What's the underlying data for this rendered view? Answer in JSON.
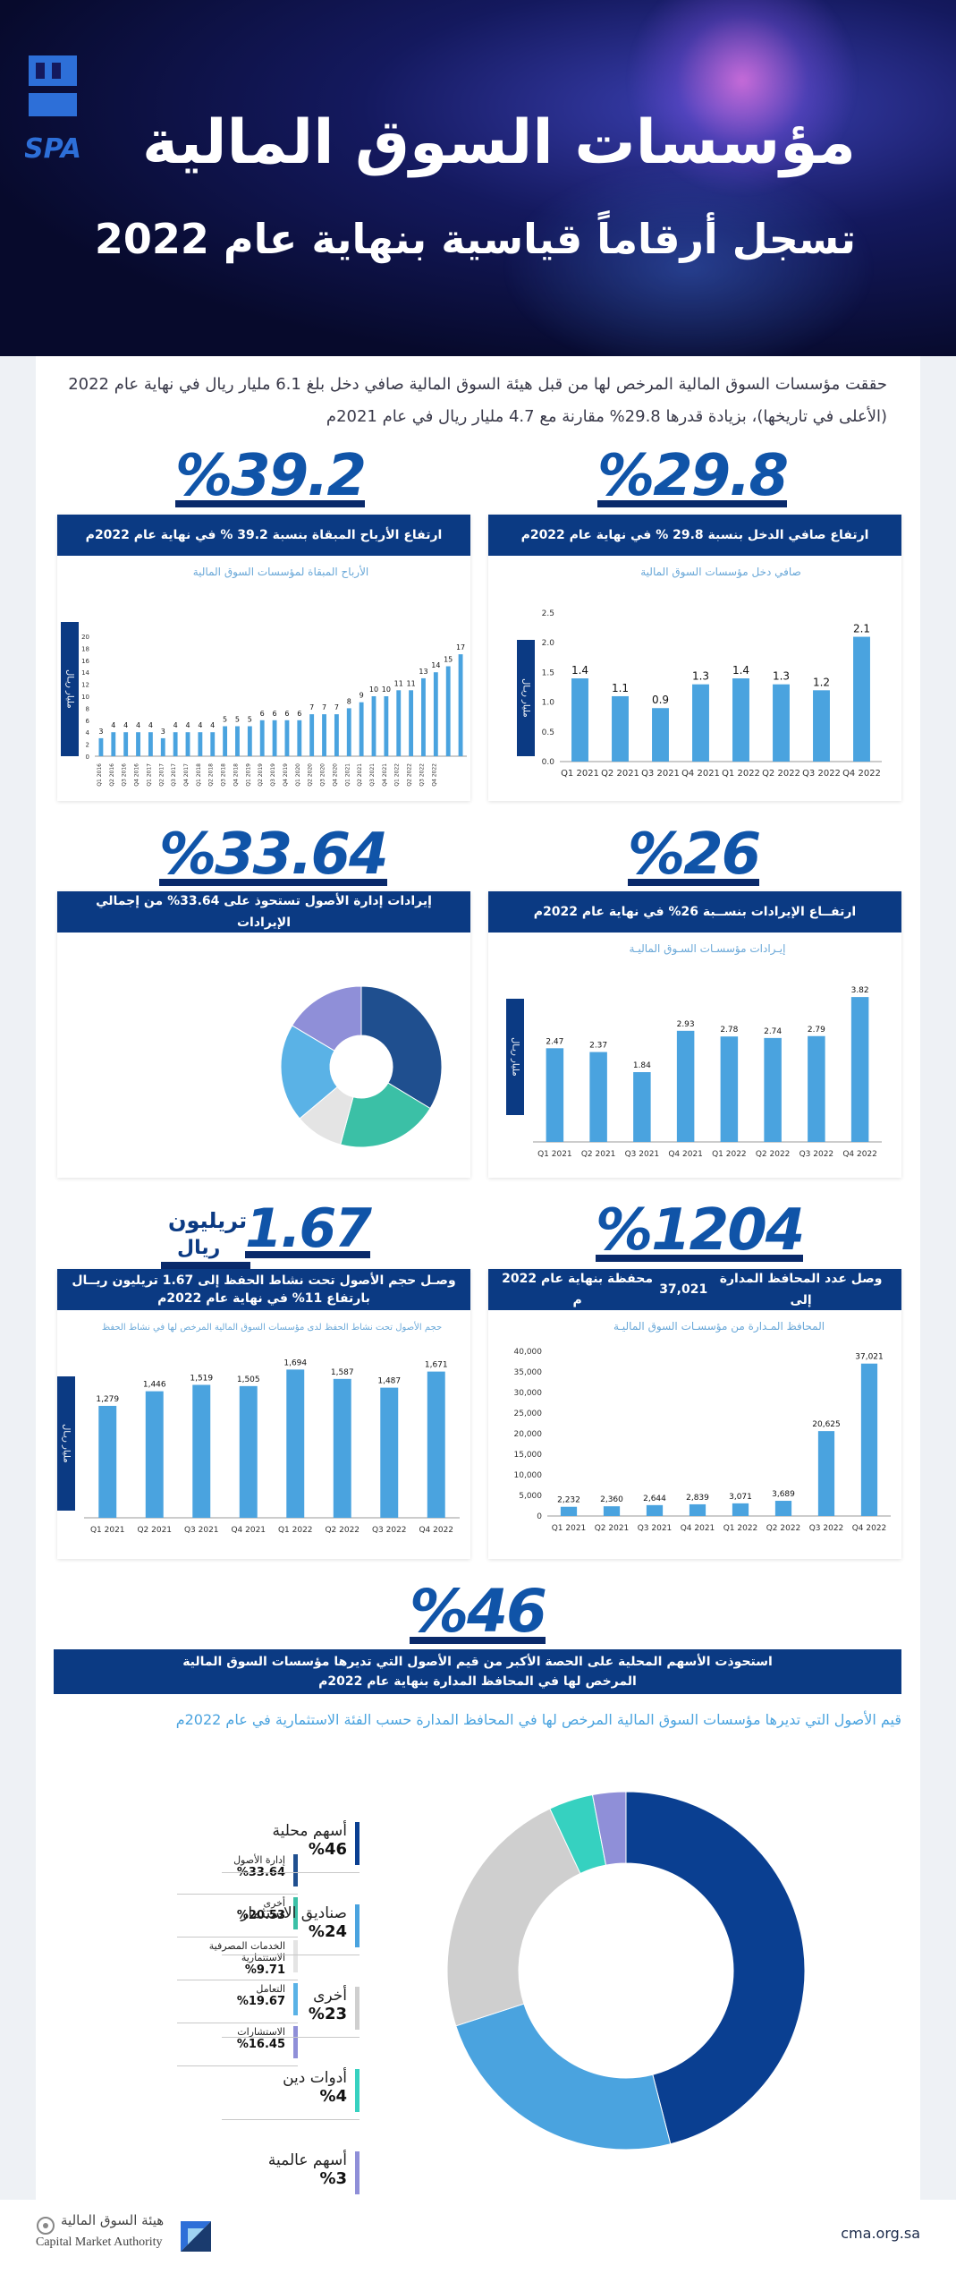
{
  "header": {
    "title": "مؤسسات السوق المالية",
    "subtitle": "تسجل أرقاماً قياسية بنهاية عام 2022",
    "logo_text": "SPA"
  },
  "intro": {
    "text": "حققت مؤسسات السوق المالية المرخص لها من قبل هيئة السوق المالية صافي دخل بلغ 6.1 مليار ريال في نهاية عام 2022 (الأعلى في تاريخها)، بزيادة قدرها 29.8% مقارنة مع 4.7 مليار ريال في عام 2021م"
  },
  "stats": {
    "net_income_pct": "%29.8",
    "profits_pct": "%39.2",
    "revenue_pct": "%26",
    "asset_mgmt_pct": "%33.64",
    "portfolios_pct": "%1204",
    "aum_value": "1.67",
    "aum_unit_1": "تريليون",
    "aum_unit_2": "ريال",
    "local_equity_pct": "%46"
  },
  "banners": {
    "net_income": "ارتفاع صافي الدخل بنسبة 29.8 % في نهاية عام 2022م",
    "profits": "ارتفاع الأرباح المبقاة بنسبة 39.2 % في نهاية عام 2022م",
    "revenue": "ارتفــاع الإيرادات بنســبة 26% في نهاية عام 2022م",
    "asset_mgmt": "إيرادات إدارة الأصول تستحوذ على 33.64% من إجمالي الإيرادات",
    "portfolios_a": "وصل عدد المحافظ المدارة إلى ",
    "portfolios_b": "37,021",
    "portfolios_c": " محفظة بنهاية عام 2022 م",
    "aum_1": "وصـل حجم الأصول تحت نشاط الحفظ إلى 1.67 تريليون ريــال",
    "aum_2": "بارتفاع 11% في نهاية عام 2022م",
    "local_1": "استحوذت الأسهم المحلية على الحصة الأكبر من قيم الأصول التي تديرها مؤسسات السوق المالية",
    "local_2": "المرخص لها في المحافظ المدارة بنهاية عام 2022م"
  },
  "y_axis_label": "مليار ريـال",
  "chart_data": [
    {
      "id": "net_income",
      "type": "bar",
      "title": "صافي دخل مؤسسات السوق المالية",
      "ylabel": "مليار ريـال",
      "categories": [
        "Q1 2021",
        "Q2 2021",
        "Q3 2021",
        "Q4 2021",
        "Q1 2022",
        "Q2 2022",
        "Q3 2022",
        "Q4 2022"
      ],
      "values": [
        1.4,
        1.1,
        0.9,
        1.3,
        1.4,
        1.3,
        1.2,
        2.1
      ],
      "value_labels": [
        "1.4",
        "1.1",
        "0.9",
        "1.3",
        "1.4",
        "1.3",
        "1.2",
        "2.1"
      ],
      "ylim": [
        0,
        2.5
      ],
      "yticks": [
        "0.0",
        "0.5",
        "1.0",
        "1.5",
        "2.0",
        "2.5"
      ],
      "color": "#4aa3df"
    },
    {
      "id": "retained_profits",
      "type": "bar",
      "title": "الأرباح المبقاة لمؤسسات السوق المالية",
      "ylabel": "مليار ريـال",
      "categories": [
        "Q1 2016",
        "Q2 2016",
        "Q3 2016",
        "Q4 2016",
        "Q1 2017",
        "Q2 2017",
        "Q3 2017",
        "Q4 2017",
        "Q1 2018",
        "Q2 2018",
        "Q3 2018",
        "Q4 2018",
        "Q1 2019",
        "Q2 2019",
        "Q3 2019",
        "Q4 2019",
        "Q1 2020",
        "Q2 2020",
        "Q3 2020",
        "Q4 2020",
        "Q1 2021",
        "Q2 2021",
        "Q3 2021",
        "Q4 2021",
        "Q1 2022",
        "Q2 2022",
        "Q3 2022",
        "Q4 2022"
      ],
      "values": [
        3,
        4,
        4,
        4,
        4,
        3,
        4,
        4,
        4,
        4,
        5,
        5,
        5,
        6,
        6,
        6,
        6,
        7,
        7,
        7,
        8,
        9,
        10,
        10,
        11,
        11,
        13,
        14
      ],
      "value_labels": [
        "3",
        "4",
        "4",
        "4",
        "4",
        "3",
        "4",
        "4",
        "4",
        "4",
        "5",
        "5",
        "5",
        "6",
        "6",
        "6",
        "6",
        "7",
        "7",
        "7",
        "8",
        "9",
        "10",
        "10",
        "11",
        "11",
        "13",
        "14"
      ],
      "extra_values": [
        15,
        17
      ],
      "extra_labels": [
        "15",
        "17"
      ],
      "ylim": [
        0,
        20
      ],
      "yticks": [
        "0",
        "2",
        "4",
        "6",
        "8",
        "10",
        "12",
        "14",
        "16",
        "18",
        "20"
      ],
      "color": "#4aa3df"
    },
    {
      "id": "revenue",
      "type": "bar",
      "title": "إيـرادات مؤسسـات السـوق الماليـة",
      "ylabel": "مليار ريـال",
      "categories": [
        "Q1 2021",
        "Q2 2021",
        "Q3 2021",
        "Q4 2021",
        "Q1 2022",
        "Q2 2022",
        "Q3 2022",
        "Q4 2022"
      ],
      "values": [
        2.47,
        2.37,
        1.84,
        2.93,
        2.78,
        2.74,
        2.79,
        3.82
      ],
      "value_labels": [
        "2.47",
        "2.37",
        "1.84",
        "2.93",
        "2.78",
        "2.74",
        "2.79",
        "3.82"
      ],
      "ylim": [
        0,
        4.2
      ],
      "color": "#4aa3df"
    },
    {
      "id": "revenue_split",
      "type": "pie",
      "labels": [
        "إدارة الأصول",
        "أخرى",
        "الخدمات المصرفية الاستثمارية",
        "التعامل",
        "الاستشارات"
      ],
      "values": [
        33.64,
        20.53,
        9.71,
        19.67,
        16.45
      ],
      "value_labels": [
        "%33.64",
        "%20.53",
        "%9.71",
        "%19.67",
        "%16.45"
      ],
      "colors": [
        "#1f4f8f",
        "#3bc0a6",
        "#e4e4e4",
        "#5ab2e6",
        "#8f8fd8"
      ]
    },
    {
      "id": "portfolios",
      "type": "bar",
      "title": "المحافظ المـدارة من مؤسسـات السوق الماليـة",
      "categories": [
        "Q1 2021",
        "Q2 2021",
        "Q3 2021",
        "Q4 2021",
        "Q1 2022",
        "Q2 2022",
        "Q3 2022",
        "Q4 2022"
      ],
      "values": [
        2232,
        2360,
        2644,
        2839,
        3071,
        3689,
        20625,
        37021
      ],
      "value_labels": [
        "2,232",
        "2,360",
        "2,644",
        "2,839",
        "3,071",
        "3,689",
        "20,625",
        "37,021"
      ],
      "ylim": [
        0,
        40000
      ],
      "yticks": [
        "0",
        "5,000",
        "10,000",
        "15,000",
        "20,000",
        "25,000",
        "30,000",
        "35,000",
        "40,000"
      ],
      "color": "#4aa3df"
    },
    {
      "id": "custody_assets",
      "type": "bar",
      "title": "حجم الأصول تحت نشاط الحفظ لدى مؤسسات السوق المالية المرخص لها في نشاط الحفظ",
      "ylabel": "مليار ريـال",
      "categories": [
        "Q1 2021",
        "Q2 2021",
        "Q3 2021",
        "Q4 2021",
        "Q1 2022",
        "Q2 2022",
        "Q3 2022",
        "Q4 2022"
      ],
      "values": [
        1279,
        1446,
        1519,
        1505,
        1694,
        1587,
        1487,
        1671
      ],
      "value_labels": [
        "1,279",
        "1,446",
        "1,519",
        "1,505",
        "1,694",
        "1,587",
        "1,487",
        "1,671"
      ],
      "ylim": [
        0,
        1800
      ],
      "color": "#4aa3df"
    },
    {
      "id": "asset_class",
      "type": "pie",
      "title": "قيم الأصول التي تديرها مؤسسات السوق المالية المرخص لها في المحافظ المدارة حسب الفئة الاستثمارية في عام 2022م",
      "labels": [
        "أسهم محلية",
        "صناديق الاستثمار",
        "أخرى",
        "أدوات دين",
        "أسهم عالمية"
      ],
      "values": [
        46,
        24,
        23,
        4,
        3
      ],
      "value_labels": [
        "%46",
        "%24",
        "%23",
        "%4",
        "%3"
      ],
      "colors": [
        "#0a3f91",
        "#4aa3df",
        "#cfcfcf",
        "#36d1c0",
        "#8f8fd8"
      ]
    }
  ],
  "footer": {
    "org_ar": "هيئة السوق المالية",
    "org_en": "Capital Market Authority",
    "url": "cma.org.sa"
  }
}
